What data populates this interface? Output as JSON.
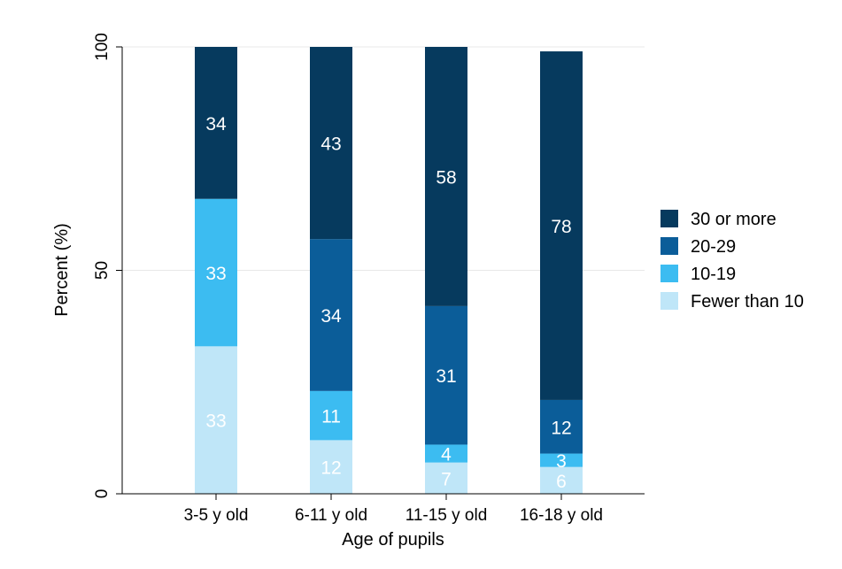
{
  "chart_data": {
    "type": "bar",
    "stacked": true,
    "orientation": "vertical",
    "xlabel": "Age of pupils",
    "ylabel": "Percent (%)",
    "ylim": [
      0,
      100
    ],
    "yticks": [
      0,
      50,
      100
    ],
    "grid": true,
    "legend_position": "right",
    "categories": [
      "3-5 y old",
      "6-11 y old",
      "11-15 y old",
      "16-18 y old"
    ],
    "series": [
      {
        "name": "Fewer than 10",
        "color": "#bfe6f8",
        "values": [
          33,
          12,
          7,
          6
        ]
      },
      {
        "name": "10-19",
        "color": "#3cbcf1",
        "values": [
          33,
          11,
          4,
          3
        ]
      },
      {
        "name": "20-29",
        "color": "#0b5d99",
        "values": [
          0,
          34,
          31,
          12
        ]
      },
      {
        "name": "30 or more",
        "color": "#063a5e",
        "values": [
          34,
          43,
          58,
          78
        ]
      }
    ],
    "legend_order": [
      "30 or more",
      "20-29",
      "10-19",
      "Fewer than 10"
    ]
  }
}
